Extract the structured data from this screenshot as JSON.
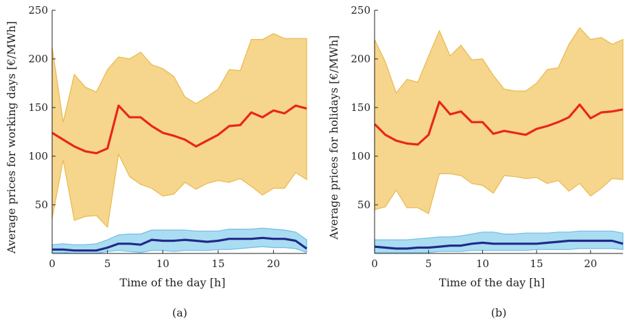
{
  "colors": {
    "band_upper": "#f6d58d",
    "band_upper_edge": "#e9b94a",
    "line_upper": "#e8261a",
    "band_lower": "#aadcf2",
    "band_lower_edge": "#6fbfe3",
    "line_lower": "#1f2a8a",
    "axis": "#222222"
  },
  "chart_data": [
    {
      "type": "area",
      "caption": "(a)",
      "xlabel": "Time of the day [h]",
      "ylabel": "Average prices for working days [€/MWh]",
      "xlim": [
        0,
        23
      ],
      "ylim": [
        0,
        250
      ],
      "xticks": [
        "0",
        "5",
        "10",
        "15",
        "20"
      ],
      "yticks": [
        "50",
        "100",
        "150",
        "200",
        "250"
      ],
      "x": [
        0,
        1,
        2,
        3,
        4,
        5,
        6,
        7,
        8,
        9,
        10,
        11,
        12,
        13,
        14,
        15,
        16,
        17,
        18,
        19,
        20,
        21,
        22,
        23
      ],
      "series": [
        {
          "role": "upper-range",
          "max": [
            212,
            135,
            184,
            171,
            166,
            189,
            202,
            200,
            207,
            194,
            190,
            182,
            161,
            154,
            161,
            169,
            189,
            188,
            220,
            220,
            226,
            221,
            221,
            221
          ],
          "min": [
            36,
            96,
            34,
            38,
            39,
            27,
            102,
            79,
            71,
            67,
            59,
            61,
            73,
            66,
            72,
            75,
            73,
            77,
            69,
            60,
            67,
            67,
            83,
            76
          ],
          "mean": [
            124,
            117,
            110,
            105,
            103,
            108,
            152,
            140,
            140,
            131,
            124,
            121,
            117,
            110,
            116,
            122,
            131,
            132,
            145,
            140,
            147,
            144,
            152,
            149
          ]
        },
        {
          "role": "lower-range",
          "max": [
            9,
            10,
            9,
            9,
            10,
            14,
            19,
            20,
            20,
            24,
            24,
            24,
            24,
            23,
            23,
            23,
            25,
            25,
            25,
            26,
            25,
            24,
            22,
            14
          ],
          "min": [
            1,
            1,
            0,
            0,
            0,
            2,
            3,
            2,
            1,
            3,
            3,
            2,
            3,
            3,
            3,
            4,
            4,
            5,
            6,
            7,
            6,
            6,
            5,
            1
          ],
          "mean": [
            4,
            4,
            3,
            3,
            3,
            6,
            10,
            10,
            9,
            14,
            13,
            13,
            14,
            13,
            12,
            13,
            15,
            15,
            15,
            16,
            15,
            15,
            13,
            5
          ]
        }
      ]
    },
    {
      "type": "area",
      "caption": "(b)",
      "xlabel": "Time of the day [h]",
      "ylabel": "Average prices for holidays [€/MWh]",
      "xlim": [
        0,
        23
      ],
      "ylim": [
        0,
        250
      ],
      "xticks": [
        "0",
        "5",
        "10",
        "15",
        "20"
      ],
      "yticks": [
        "50",
        "100",
        "150",
        "200",
        "250"
      ],
      "x": [
        0,
        1,
        2,
        3,
        4,
        5,
        6,
        7,
        8,
        9,
        10,
        11,
        12,
        13,
        14,
        15,
        16,
        17,
        18,
        19,
        20,
        21,
        22,
        23
      ],
      "series": [
        {
          "role": "upper-range",
          "max": [
            220,
            197,
            165,
            179,
            176,
            203,
            229,
            203,
            214,
            199,
            200,
            183,
            169,
            167,
            167,
            175,
            189,
            191,
            215,
            232,
            220,
            222,
            215,
            220
          ],
          "min": [
            45,
            48,
            65,
            47,
            47,
            41,
            82,
            82,
            80,
            72,
            70,
            62,
            80,
            79,
            77,
            78,
            72,
            75,
            64,
            72,
            59,
            67,
            77,
            76
          ],
          "mean": [
            133,
            122,
            116,
            113,
            112,
            122,
            156,
            143,
            146,
            135,
            135,
            123,
            126,
            124,
            122,
            128,
            131,
            135,
            140,
            153,
            139,
            145,
            146,
            148
          ]
        },
        {
          "role": "lower-range",
          "max": [
            14,
            14,
            14,
            14,
            15,
            16,
            17,
            17,
            18,
            20,
            22,
            22,
            20,
            20,
            21,
            21,
            21,
            22,
            22,
            23,
            23,
            23,
            23,
            21
          ],
          "min": [
            1,
            1,
            1,
            1,
            1,
            1,
            2,
            2,
            2,
            3,
            3,
            3,
            3,
            3,
            3,
            4,
            4,
            4,
            4,
            5,
            5,
            5,
            5,
            4
          ],
          "mean": [
            7,
            6,
            5,
            5,
            6,
            6,
            7,
            8,
            8,
            10,
            11,
            10,
            10,
            10,
            10,
            10,
            11,
            12,
            13,
            13,
            13,
            13,
            13,
            10
          ]
        }
      ]
    }
  ]
}
